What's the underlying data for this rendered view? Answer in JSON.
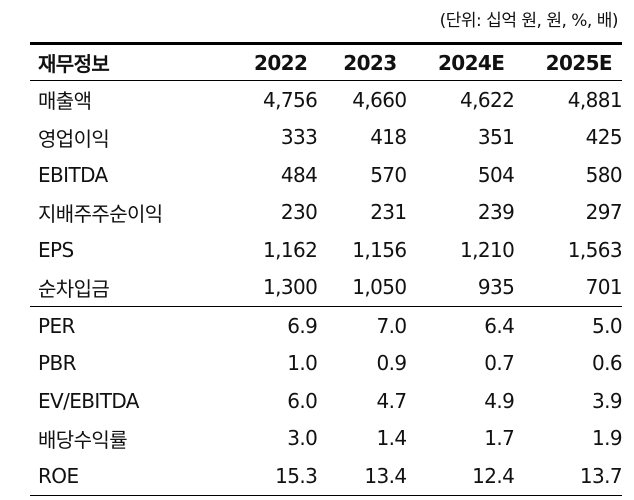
{
  "header": {
    "unit": "(단위: 십억 원, 원, %, 배)"
  },
  "table": {
    "columns": [
      "재무정보",
      "2022",
      "2023",
      "2024E",
      "2025E"
    ],
    "rows": [
      [
        "매출액",
        "4,756",
        "4,660",
        "4,622",
        "4,881"
      ],
      [
        "영업이익",
        "333",
        "418",
        "351",
        "425"
      ],
      [
        "EBITDA",
        "484",
        "570",
        "504",
        "580"
      ],
      [
        "지배주주순이익",
        "230",
        "231",
        "239",
        "297"
      ],
      [
        "EPS",
        "1,162",
        "1,156",
        "1,210",
        "1,563"
      ],
      [
        "순차입금",
        "1,300",
        "1,050",
        "935",
        "701"
      ],
      [
        "PER",
        "6.9",
        "7.0",
        "6.4",
        "5.0"
      ],
      [
        "PBR",
        "1.0",
        "0.9",
        "0.7",
        "0.6"
      ],
      [
        "EV/EBITDA",
        "6.0",
        "4.7",
        "4.9",
        "3.9"
      ],
      [
        "배당수익률",
        "3.0",
        "1.4",
        "1.7",
        "1.9"
      ],
      [
        "ROE",
        "15.3",
        "13.4",
        "12.4",
        "13.7"
      ]
    ]
  }
}
